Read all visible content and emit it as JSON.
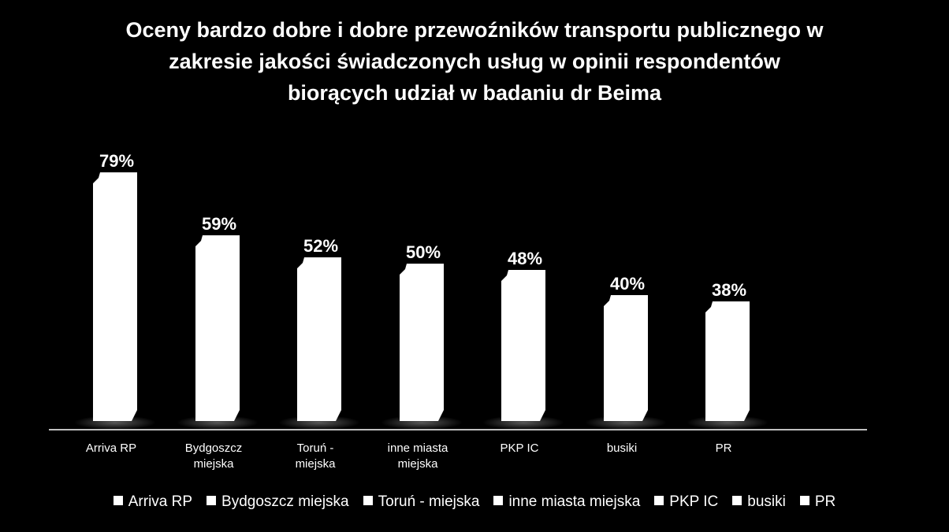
{
  "chart_data": {
    "type": "bar",
    "title_lines": [
      "Oceny bardzo dobre i dobre przewoźników transportu publicznego w",
      "zakresie jakości świadczonych usług w opinii respondentów",
      "biorących udział w badaniu dr Beima"
    ],
    "categories": [
      "Arriva RP",
      "Bydgoszcz miejska",
      "Toruń - miejska",
      "inne miasta miejska",
      "PKP IC",
      "busiki",
      "PR"
    ],
    "category_labels": [
      [
        "Arriva RP"
      ],
      [
        "Bydgoszcz",
        "miejska"
      ],
      [
        "Toruń -",
        "miejska"
      ],
      [
        "inne miasta",
        "miejska"
      ],
      [
        "PKP IC"
      ],
      [
        "busiki"
      ],
      [
        "PR"
      ]
    ],
    "values": [
      79,
      59,
      52,
      50,
      48,
      40,
      38
    ],
    "data_labels": [
      "79%",
      "59%",
      "52%",
      "50%",
      "48%",
      "40%",
      "38%"
    ],
    "legend_position": "bottom",
    "ylim": [
      0,
      100
    ],
    "grid": false,
    "bar_color": "#ffffff",
    "background": "#000000"
  }
}
